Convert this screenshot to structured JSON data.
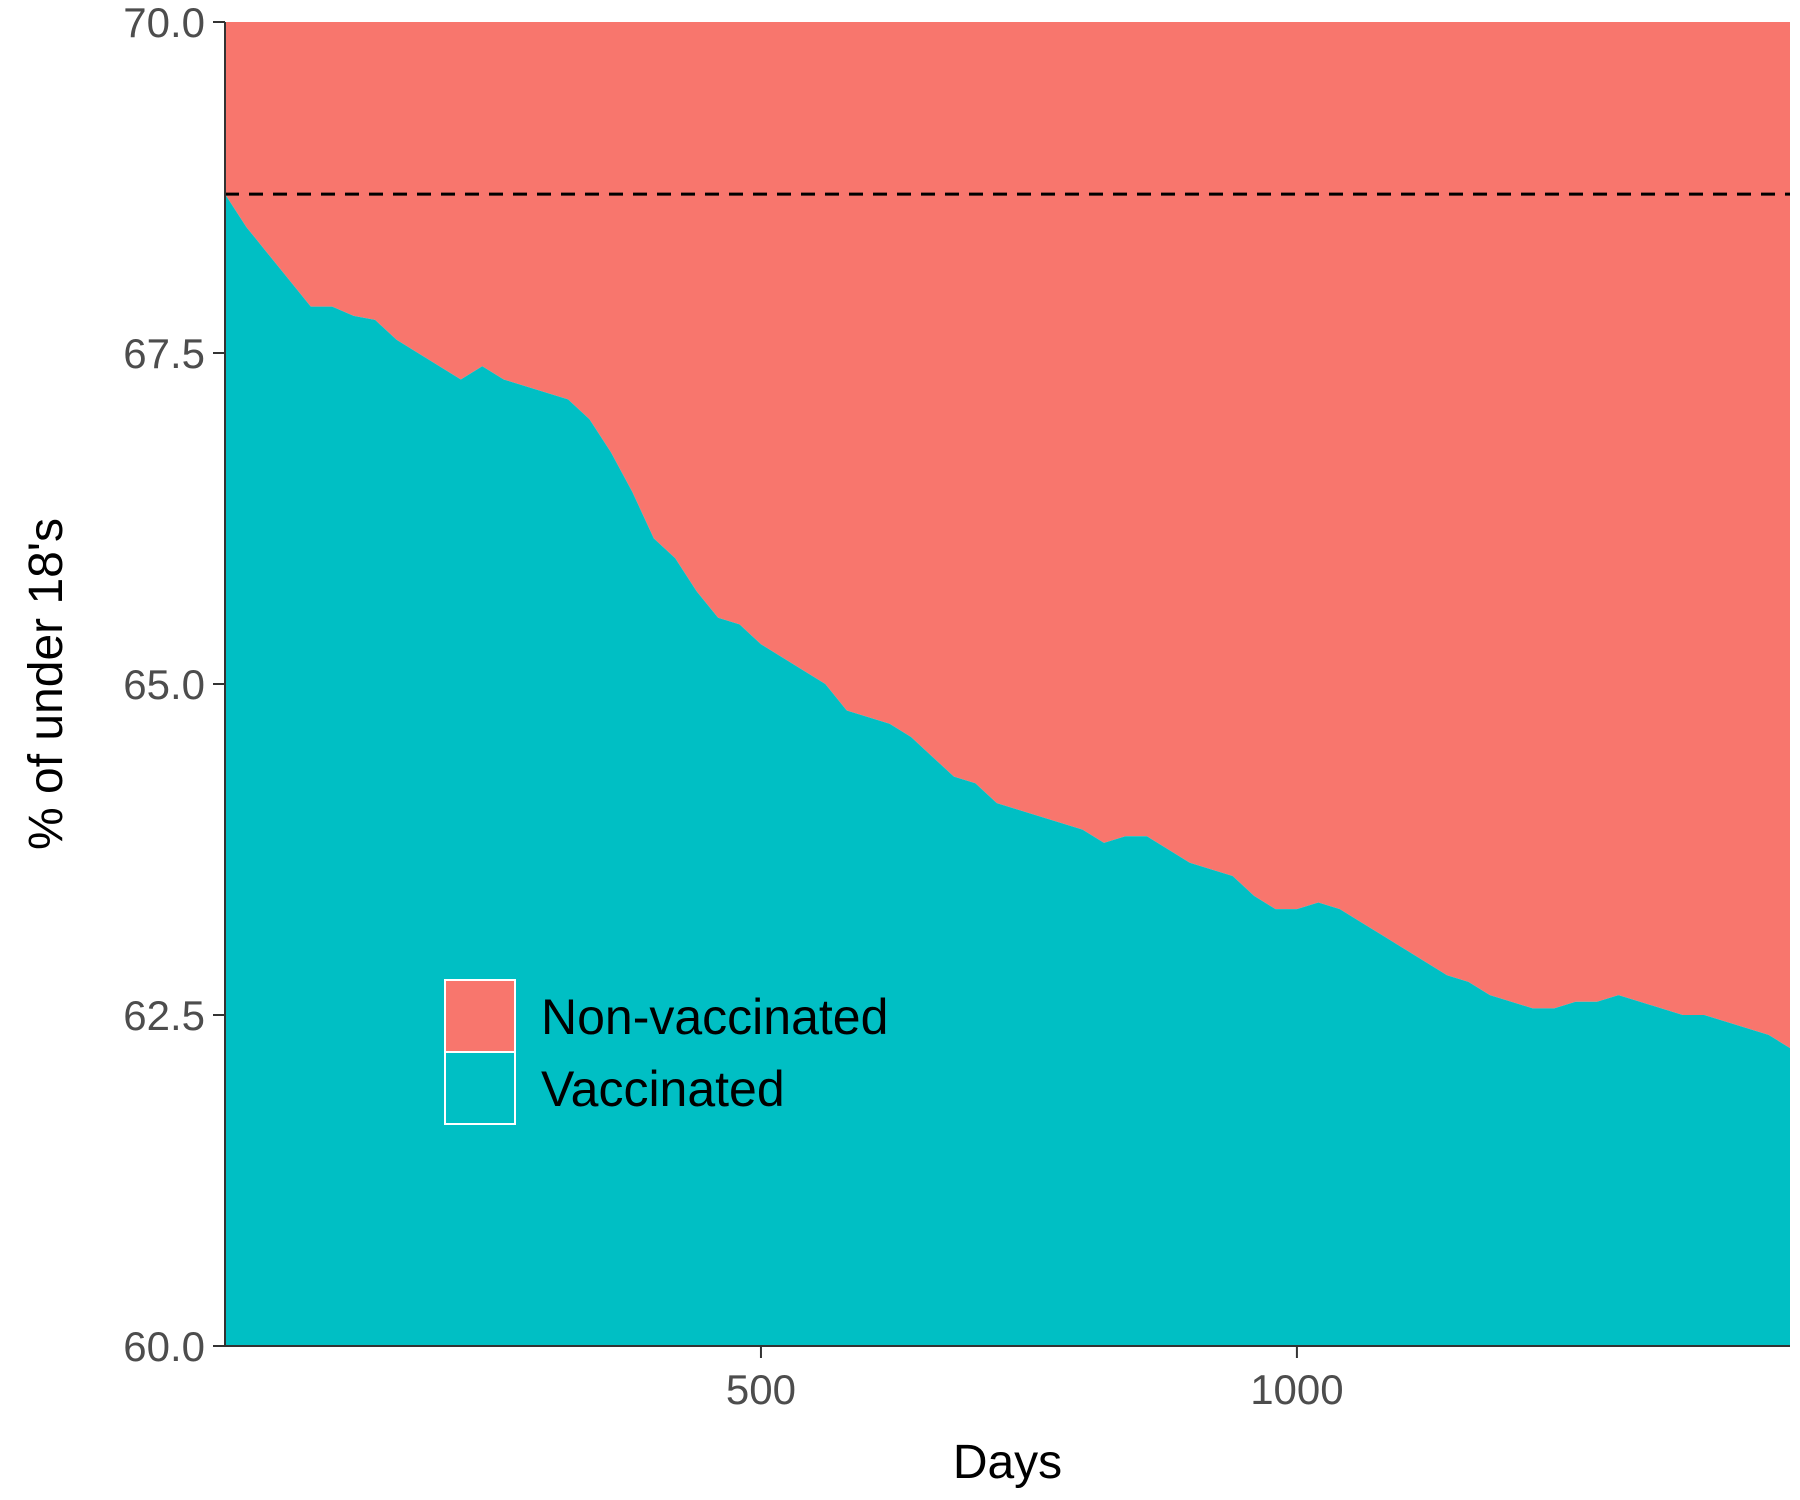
{
  "chart_data": {
    "type": "area",
    "xlabel": "Days",
    "ylabel": "% of under 18's",
    "xlim": [
      0,
      1460
    ],
    "ylim": [
      60,
      70
    ],
    "x_ticks": [
      500,
      1000
    ],
    "x_tick_labels": [
      "500",
      "1000"
    ],
    "y_ticks": [
      60,
      62.5,
      65,
      67.5,
      70
    ],
    "y_tick_labels": [
      "60.0",
      "62.5",
      "65.0",
      "67.5",
      "70.0"
    ],
    "grid": false,
    "legend_position": "inside, lower-left",
    "reference_line": {
      "y": 68.7,
      "style": "dashed",
      "color": "#000000"
    },
    "series": [
      {
        "name": "Non-vaccinated",
        "color": "#F8766D",
        "fill_from": 70
      },
      {
        "name": "Vaccinated",
        "color": "#00BFC4",
        "x": [
          0,
          20,
          40,
          60,
          80,
          100,
          120,
          140,
          160,
          180,
          200,
          220,
          240,
          260,
          280,
          300,
          320,
          340,
          360,
          380,
          400,
          420,
          440,
          460,
          480,
          500,
          520,
          540,
          560,
          580,
          600,
          620,
          640,
          660,
          680,
          700,
          720,
          740,
          760,
          780,
          800,
          820,
          840,
          860,
          880,
          900,
          920,
          940,
          960,
          980,
          1000,
          1020,
          1040,
          1060,
          1080,
          1100,
          1120,
          1140,
          1160,
          1180,
          1200,
          1220,
          1240,
          1260,
          1280,
          1300,
          1320,
          1340,
          1360,
          1380,
          1400,
          1420,
          1440,
          1460
        ],
        "values": [
          68.7,
          68.45,
          68.25,
          68.05,
          67.85,
          67.85,
          67.78,
          67.75,
          67.6,
          67.5,
          67.4,
          67.3,
          67.4,
          67.3,
          67.25,
          67.2,
          67.15,
          67.0,
          66.75,
          66.45,
          66.1,
          65.95,
          65.7,
          65.5,
          65.45,
          65.3,
          65.2,
          65.1,
          65.0,
          64.8,
          64.75,
          64.7,
          64.6,
          64.45,
          64.3,
          64.25,
          64.1,
          64.05,
          64.0,
          63.95,
          63.9,
          63.8,
          63.85,
          63.85,
          63.75,
          63.65,
          63.6,
          63.55,
          63.4,
          63.3,
          63.3,
          63.35,
          63.3,
          63.2,
          63.1,
          63.0,
          62.9,
          62.8,
          62.75,
          62.65,
          62.6,
          62.55,
          62.55,
          62.6,
          62.6,
          62.65,
          62.6,
          62.55,
          62.5,
          62.5,
          62.45,
          62.4,
          62.35,
          62.25
        ]
      }
    ]
  }
}
